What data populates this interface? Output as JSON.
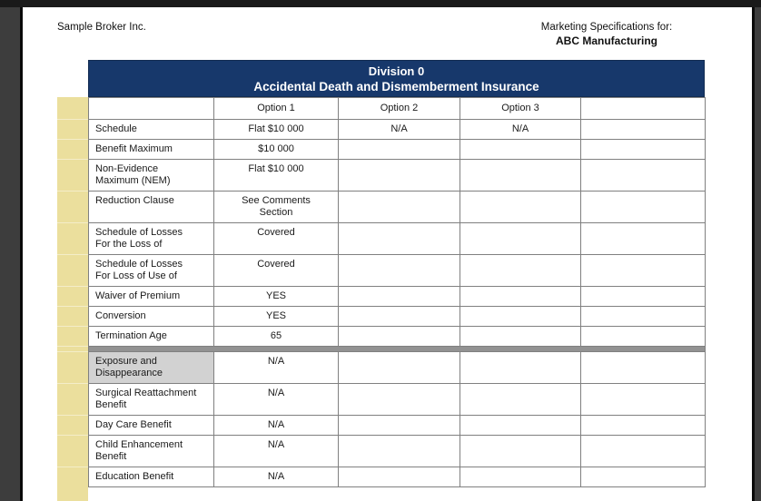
{
  "header": {
    "broker_name": "Sample Broker Inc.",
    "marketing_label": "Marketing Specifications for:",
    "client_name": "ABC Manufacturing"
  },
  "division_banner": {
    "line1": "Division 0",
    "line2": "Accidental Death and Dismemberment Insurance"
  },
  "table": {
    "column_headers": [
      "",
      "Option 1",
      "Option 2",
      "Option 3",
      ""
    ],
    "rows": [
      {
        "label": "Schedule",
        "values": [
          "Flat $10 000",
          "N/A",
          "N/A",
          ""
        ]
      },
      {
        "label": "Benefit Maximum",
        "values": [
          "$10 000",
          "",
          "",
          ""
        ]
      },
      {
        "label": "Non-Evidence\nMaximum (NEM)",
        "values": [
          "Flat $10 000",
          "",
          "",
          ""
        ]
      },
      {
        "label": "Reduction Clause",
        "values": [
          "See Comments\nSection",
          "",
          "",
          ""
        ]
      },
      {
        "label": "Schedule of Losses\nFor the Loss of",
        "values": [
          "Covered",
          "",
          "",
          ""
        ]
      },
      {
        "label": "Schedule of Losses\nFor Loss of Use of",
        "values": [
          "Covered",
          "",
          "",
          ""
        ]
      },
      {
        "label": "Waiver of Premium",
        "values": [
          "YES",
          "",
          "",
          ""
        ]
      },
      {
        "label": "Conversion",
        "values": [
          "YES",
          "",
          "",
          ""
        ]
      },
      {
        "label": "Termination Age",
        "values": [
          "65",
          "",
          "",
          ""
        ]
      },
      {
        "label": "Exposure and\nDisappearance",
        "values": [
          "N/A",
          "",
          "",
          ""
        ],
        "divider_before": true,
        "label_shaded": true
      },
      {
        "label": "Surgical Reattachment\nBenefit",
        "values": [
          "N/A",
          "",
          "",
          ""
        ]
      },
      {
        "label": "Day Care Benefit",
        "values": [
          "N/A",
          "",
          "",
          ""
        ]
      },
      {
        "label": "Child Enhancement\nBenefit",
        "values": [
          "N/A",
          "",
          "",
          ""
        ]
      },
      {
        "label": "Education Benefit",
        "values": [
          "N/A",
          "",
          "",
          ""
        ]
      }
    ]
  },
  "colors": {
    "banner_navy": "#17386b",
    "banner_text": "#ffffff",
    "tan_strip": "#ebdf9d",
    "grid_line": "#808080",
    "section_divider": "#929292",
    "shaded_label_cell": "#d2d2d2",
    "page_background": "#ffffff",
    "app_background": "#3d3d3d",
    "text": "#1a1a1a"
  }
}
